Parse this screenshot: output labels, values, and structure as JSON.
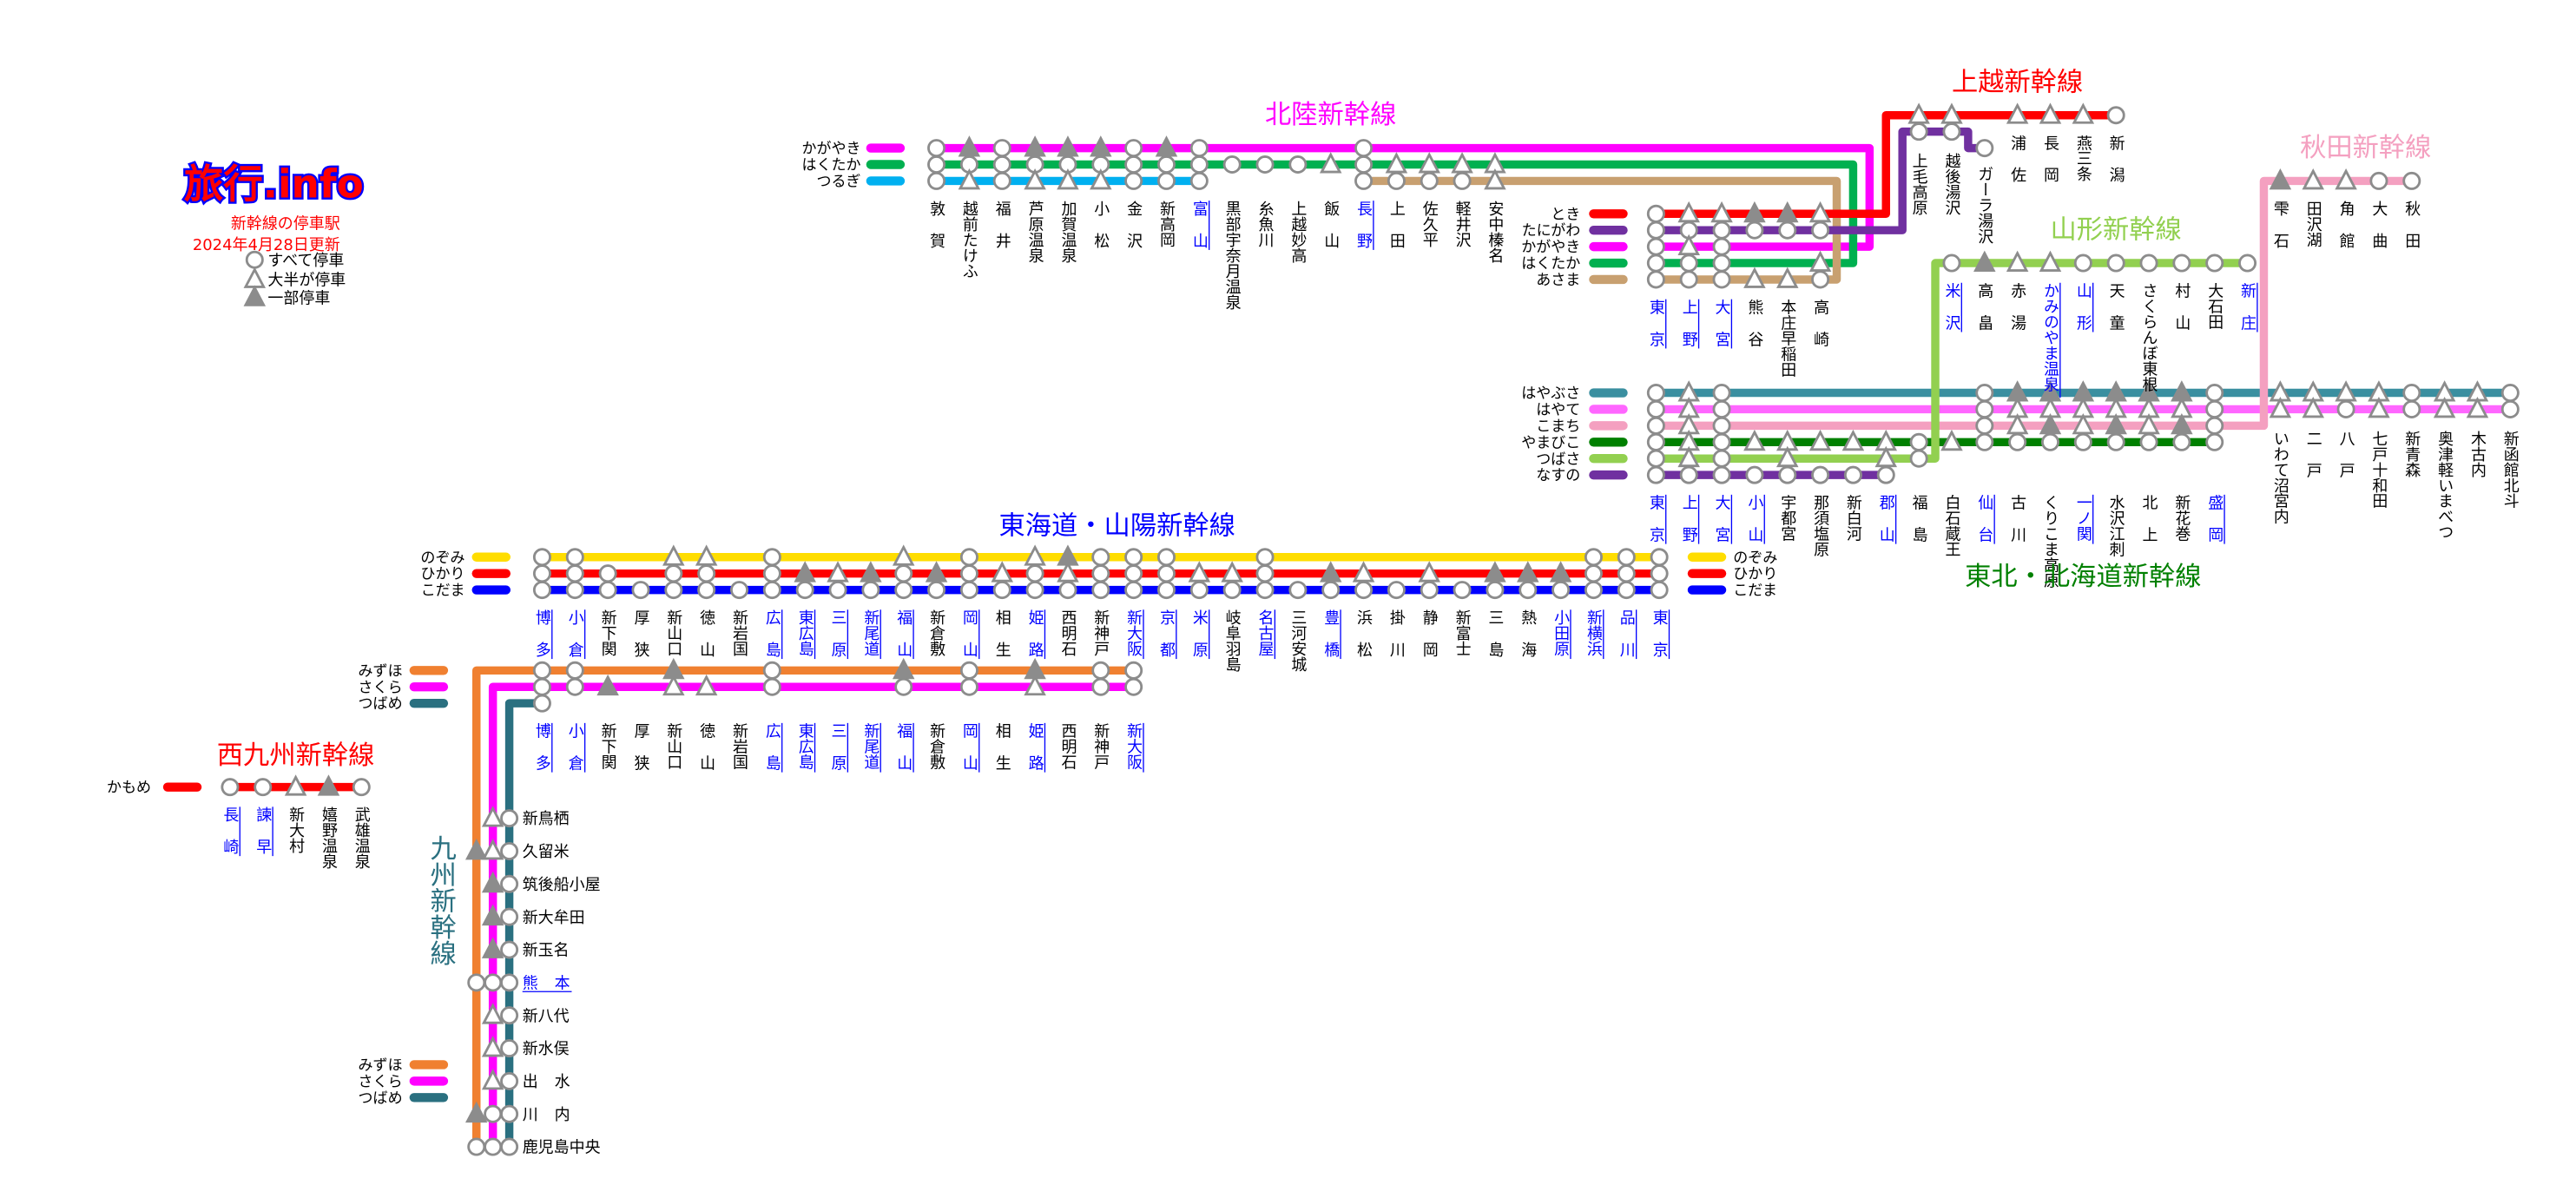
{
  "logo": {
    "text": "旅行.info",
    "color": "#ff0000",
    "outline": "#0000ff"
  },
  "header": {
    "subtitle": "新幹線の停車駅",
    "updated": "2024年4月28日更新",
    "text_color": "#ff0000"
  },
  "legend": {
    "o": {
      "label": "すべて停車",
      "icon": "circle-icon"
    },
    "t": {
      "label": "大半が停車",
      "icon": "triangle-outline-icon"
    },
    "f": {
      "label": "一部停車",
      "icon": "triangle-filled-icon"
    }
  },
  "marker_colors": {
    "stroke": "#8c8c8c",
    "fill": "#ffffff",
    "filled": "#8c8c8c",
    "major_station": "#0000ff",
    "station": "#000000"
  },
  "titles": {
    "hokuriku": {
      "text": "北陸新幹線",
      "color": "#ff00ff"
    },
    "joetsu": {
      "text": "上越新幹線",
      "color": "#ff0000"
    },
    "akita": {
      "text": "秋田新幹線",
      "color": "#f4a0c0"
    },
    "yamagata": {
      "text": "山形新幹線",
      "color": "#92d050"
    },
    "tohoku": {
      "text": "東北・北海道新幹線",
      "color": "#008000"
    },
    "tokaido": {
      "text": "東海道・山陽新幹線",
      "color": "#0000ff"
    },
    "nishikyushu": {
      "text": "西九州新幹線",
      "color": "#ff0000"
    },
    "kyushu": {
      "text": "九州新幹線",
      "color": "#2a7080"
    }
  },
  "services": {
    "kagayaki": {
      "name": "かがやき",
      "color": "#ff00ff"
    },
    "hakutaka": {
      "name": "はくたか",
      "color": "#00b050"
    },
    "tsurugi": {
      "name": "つるぎ",
      "color": "#00b0f0"
    },
    "asama": {
      "name": "あさま",
      "color": "#c8a070"
    },
    "toki": {
      "name": "とき",
      "color": "#ff0000"
    },
    "tanigawa": {
      "name": "たにがわ",
      "color": "#7030a0"
    },
    "hayabusa": {
      "name": "はやぶさ",
      "color": "#3a8fa0"
    },
    "hayate": {
      "name": "はやて",
      "color": "#ff66ff"
    },
    "komachi": {
      "name": "こまち",
      "color": "#f4a0c0"
    },
    "yamabiko": {
      "name": "やまびこ",
      "color": "#008000"
    },
    "tsubasa": {
      "name": "つばさ",
      "color": "#92d050"
    },
    "nasuno": {
      "name": "なすの",
      "color": "#7030a0"
    },
    "nozomi": {
      "name": "のぞみ",
      "color": "#ffdd00"
    },
    "hikari": {
      "name": "ひかり",
      "color": "#ff0000"
    },
    "kodama": {
      "name": "こだま",
      "color": "#0000ff"
    },
    "mizuho": {
      "name": "みずほ",
      "color": "#f08030"
    },
    "sakura": {
      "name": "さくら",
      "color": "#ff00ff"
    },
    "tsubame": {
      "name": "つばめ",
      "color": "#2a7080"
    },
    "kamome": {
      "name": "かもめ",
      "color": "#ff0000"
    }
  },
  "sections": {
    "hokuriku": {
      "stations": [
        {
          "name": "敦賀"
        },
        {
          "name": "越前たけふ"
        },
        {
          "name": "福井"
        },
        {
          "name": "芦原温泉"
        },
        {
          "name": "加賀温泉"
        },
        {
          "name": "小松"
        },
        {
          "name": "金沢"
        },
        {
          "name": "新高岡"
        },
        {
          "name": "富山",
          "major": true
        },
        {
          "name": "黒部宇奈月温泉"
        },
        {
          "name": "糸魚川"
        },
        {
          "name": "上越妙高"
        },
        {
          "name": "飯山"
        },
        {
          "name": "長野",
          "major": true
        },
        {
          "name": "上田"
        },
        {
          "name": "佐久平"
        },
        {
          "name": "軽井沢"
        },
        {
          "name": "安中榛名"
        }
      ],
      "services": [
        {
          "id": "kagayaki",
          "stops": "ofofffofo----o----"
        },
        {
          "id": "hakutaka",
          "stops": "oooooooooooototttt"
        },
        {
          "id": "tsurugi",
          "stops": "ototttooo---------"
        },
        {
          "id": "asama",
          "stops": "-------------oooot"
        }
      ]
    },
    "takasaki": {
      "stations": [
        {
          "name": "東京",
          "major": true
        },
        {
          "name": "上野",
          "major": true
        },
        {
          "name": "大宮",
          "major": true
        },
        {
          "name": "熊谷"
        },
        {
          "name": "本庄早稲田"
        },
        {
          "name": "高崎"
        }
      ],
      "services": [
        {
          "id": "toki",
          "stops": "ottfft"
        },
        {
          "id": "tanigawa",
          "stops": "oooooo"
        },
        {
          "id": "kagayaki",
          "stops": "oto---"
        },
        {
          "id": "hakutaka",
          "stops": "ooo--t"
        },
        {
          "id": "asama",
          "stops": "oootto"
        }
      ]
    },
    "joetsu": {
      "stations": [
        {
          "name": "上毛高原"
        },
        {
          "name": "越後湯沢"
        },
        {
          "name": "浦佐"
        },
        {
          "name": "長岡"
        },
        {
          "name": "燕三条"
        },
        {
          "name": "新潟"
        }
      ],
      "services": [
        {
          "id": "toki",
          "stops": "ttttto"
        },
        {
          "id": "tanigawa",
          "stops": "oo----"
        }
      ]
    },
    "gala": {
      "stations": [
        {
          "name": "ガーラ湯沢"
        }
      ],
      "services": [
        {
          "id": "tanigawa",
          "stops": "o"
        }
      ]
    },
    "akita": {
      "stations": [
        {
          "name": "雫石"
        },
        {
          "name": "田沢湖"
        },
        {
          "name": "角館"
        },
        {
          "name": "大曲"
        },
        {
          "name": "秋田"
        }
      ],
      "services": [
        {
          "id": "komachi",
          "stops": "fttoo"
        }
      ]
    },
    "yamagata": {
      "stations": [
        {
          "name": "米沢",
          "major": true
        },
        {
          "name": "高畠"
        },
        {
          "name": "赤湯"
        },
        {
          "name": "かみのやま温泉",
          "major": true
        },
        {
          "name": "山形",
          "major": true
        },
        {
          "name": "天童"
        },
        {
          "name": "さくらんぼ東根"
        },
        {
          "name": "村山"
        },
        {
          "name": "大石田"
        },
        {
          "name": "新庄",
          "major": true
        }
      ],
      "services": [
        {
          "id": "tsubasa",
          "stops": "ofttoooooo"
        }
      ]
    },
    "tohoku": {
      "stations": [
        {
          "name": "東京",
          "major": true
        },
        {
          "name": "上野",
          "major": true
        },
        {
          "name": "大宮",
          "major": true
        },
        {
          "name": "小山",
          "major": true
        },
        {
          "name": "宇都宮"
        },
        {
          "name": "那須塩原"
        },
        {
          "name": "新白河"
        },
        {
          "name": "郡山",
          "major": true
        },
        {
          "name": "福島"
        },
        {
          "name": "白石蔵王"
        },
        {
          "name": "仙台",
          "major": true
        },
        {
          "name": "古川"
        },
        {
          "name": "くりこま高原"
        },
        {
          "name": "一ノ関",
          "major": true
        },
        {
          "name": "水沢江刺"
        },
        {
          "name": "北上"
        },
        {
          "name": "新花巻"
        },
        {
          "name": "盛岡",
          "major": true
        },
        {
          "name": "いわて沼宮内"
        },
        {
          "name": "二戸"
        },
        {
          "name": "八戸"
        },
        {
          "name": "七戸十和田"
        },
        {
          "name": "新青森"
        },
        {
          "name": "奥津軽いまべつ"
        },
        {
          "name": "木古内"
        },
        {
          "name": "新函館北斗"
        }
      ],
      "services": [
        {
          "id": "hayabusa",
          "stops": "oto-------offffffottttotto"
        },
        {
          "id": "hayate",
          "stops": "oto-------ottttttottototto"
        },
        {
          "id": "komachi",
          "stops": "oto-------otftftfo--------"
        },
        {
          "id": "yamabiko",
          "stops": "ototttttotoooooooo--------"
        },
        {
          "id": "tsubasa",
          "stops": "oto-t--to-----------------"
        },
        {
          "id": "nasuno",
          "stops": "oooooooo------------------"
        }
      ]
    },
    "tokaido": {
      "stations": [
        {
          "name": "博多",
          "major": true
        },
        {
          "name": "小倉",
          "major": true
        },
        {
          "name": "新下関"
        },
        {
          "name": "厚狭"
        },
        {
          "name": "新山口"
        },
        {
          "name": "徳山"
        },
        {
          "name": "新岩国"
        },
        {
          "name": "広島",
          "major": true
        },
        {
          "name": "東広島",
          "major": true
        },
        {
          "name": "三原",
          "major": true
        },
        {
          "name": "新尾道",
          "major": true
        },
        {
          "name": "福山",
          "major": true
        },
        {
          "name": "新倉敷"
        },
        {
          "name": "岡山",
          "major": true
        },
        {
          "name": "相生"
        },
        {
          "name": "姫路",
          "major": true
        },
        {
          "name": "西明石"
        },
        {
          "name": "新神戸"
        },
        {
          "name": "新大阪",
          "major": true
        },
        {
          "name": "京都",
          "major": true
        },
        {
          "name": "米原",
          "major": true
        },
        {
          "name": "岐阜羽島"
        },
        {
          "name": "名古屋",
          "major": true
        },
        {
          "name": "三河安城"
        },
        {
          "name": "豊橋",
          "major": true
        },
        {
          "name": "浜松"
        },
        {
          "name": "掛川"
        },
        {
          "name": "静岡"
        },
        {
          "name": "新富士"
        },
        {
          "name": "三島"
        },
        {
          "name": "熱海"
        },
        {
          "name": "小田原",
          "major": true
        },
        {
          "name": "新横浜",
          "major": true
        },
        {
          "name": "品川",
          "major": true
        },
        {
          "name": "東京",
          "major": true
        }
      ],
      "services": [
        {
          "id": "nozomi",
          "stops": "oo--tt-o---t-o-tfooo--o---------ooo"
        },
        {
          "id": "hikari",
          "stops": "ooo-oo-oftfofototoootto-ft-t-fffooo"
        },
        {
          "id": "kodama",
          "stops": "ooooooooooooooooooooooooooooooooooo"
        }
      ]
    },
    "sanyo_kyushu": {
      "stations": [
        {
          "name": "博多",
          "major": true
        },
        {
          "name": "小倉",
          "major": true
        },
        {
          "name": "新下関"
        },
        {
          "name": "厚狭"
        },
        {
          "name": "新山口"
        },
        {
          "name": "徳山"
        },
        {
          "name": "新岩国"
        },
        {
          "name": "広島",
          "major": true
        },
        {
          "name": "東広島",
          "major": true
        },
        {
          "name": "三原",
          "major": true
        },
        {
          "name": "新尾道",
          "major": true
        },
        {
          "name": "福山",
          "major": true
        },
        {
          "name": "新倉敷"
        },
        {
          "name": "岡山",
          "major": true
        },
        {
          "name": "相生"
        },
        {
          "name": "姫路",
          "major": true
        },
        {
          "name": "西明石"
        },
        {
          "name": "新神戸"
        },
        {
          "name": "新大阪",
          "major": true
        }
      ],
      "services": [
        {
          "id": "mizuho",
          "stops": "oo--f--o---f-o-f-oo"
        },
        {
          "id": "sakura",
          "stops": "oof-tt-o---o-o-t-oo"
        },
        {
          "id": "tsubame",
          "stops": "o------------------"
        }
      ]
    },
    "kyushu": {
      "stations": [
        {
          "name": "新鳥栖"
        },
        {
          "name": "久留米"
        },
        {
          "name": "筑後船小屋"
        },
        {
          "name": "新大牟田"
        },
        {
          "name": "新玉名"
        },
        {
          "name": "熊本",
          "major": true
        },
        {
          "name": "新八代"
        },
        {
          "name": "新水俣"
        },
        {
          "name": "出水"
        },
        {
          "name": "川内"
        },
        {
          "name": "鹿児島中央"
        }
      ],
      "services": [
        {
          "id": "mizuho",
          "stops": "-f---o---fo"
        },
        {
          "id": "sakura",
          "stops": "ttfffotttoo"
        },
        {
          "id": "tsubame",
          "stops": "ooooooooooo"
        }
      ]
    },
    "nishikyushu": {
      "stations": [
        {
          "name": "長崎",
          "major": true
        },
        {
          "name": "諫早",
          "major": true
        },
        {
          "name": "新大村"
        },
        {
          "name": "嬉野温泉"
        },
        {
          "name": "武雄温泉"
        }
      ],
      "services": [
        {
          "id": "kamome",
          "stops": "ootfo"
        }
      ]
    }
  }
}
